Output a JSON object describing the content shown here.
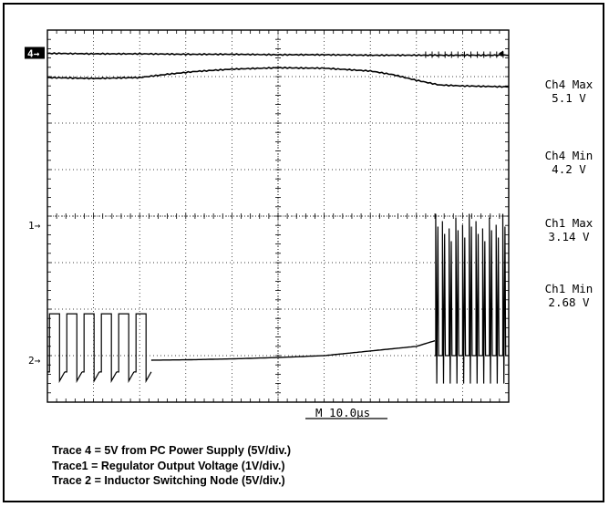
{
  "chart_data": {
    "type": "line",
    "title": "",
    "xlabel": "",
    "ylabel": "",
    "timebase_label": "M 10.0µs",
    "divisions": {
      "x": 10,
      "y": 8
    },
    "xlim_div": [
      0,
      10
    ],
    "ylim_div": [
      -4,
      4
    ],
    "grid": true,
    "channel_markers": [
      {
        "label": "4",
        "level_div": 3.5,
        "style": "boxed"
      },
      {
        "label": "1",
        "level_div": -0.2,
        "style": "arrow"
      },
      {
        "label": "2",
        "level_div": -3.1,
        "style": "arrow"
      }
    ],
    "measurements": [
      {
        "name": "Ch4 Max",
        "value": "5.1 V"
      },
      {
        "name": "Ch4 Min",
        "value": "4.2 V"
      },
      {
        "name": "Ch1 Max",
        "value": "3.14 V"
      },
      {
        "name": "Ch1 Min",
        "value": "2.68 V"
      }
    ],
    "series": [
      {
        "channel": "4",
        "x": [
          0,
          1,
          2,
          3,
          4,
          5,
          6,
          7,
          8,
          9,
          10
        ],
        "y": [
          3.5,
          3.49,
          3.49,
          3.48,
          3.48,
          3.47,
          3.47,
          3.46,
          3.46,
          3.46,
          3.46
        ],
        "ripple_from_div": 8.2
      },
      {
        "channel": "1",
        "x": [
          0,
          1,
          2,
          2.6,
          3.2,
          4,
          5,
          6,
          7,
          7.5,
          8.0,
          8.5,
          9,
          10
        ],
        "y": [
          2.98,
          2.96,
          2.98,
          3.05,
          3.11,
          3.16,
          3.19,
          3.18,
          3.12,
          3.04,
          2.92,
          2.82,
          2.8,
          2.78
        ]
      },
      {
        "channel": "2",
        "x": [
          0,
          2,
          3,
          4,
          5,
          6,
          7,
          8,
          8.4,
          10
        ],
        "y": [
          -3.1,
          -3.1,
          -3.09,
          -3.07,
          -3.04,
          -3.0,
          -2.9,
          -2.8,
          -2.68,
          -2.68
        ],
        "bursts": [
          {
            "from_div": 0,
            "to_div": 2.25,
            "high_div": -2.1,
            "low_div": -3.35,
            "pulses": 6
          },
          {
            "from_div": 8.4,
            "to_div": 10,
            "high_div": 0.05,
            "low_div": -3.0,
            "pulses": 11
          }
        ]
      }
    ]
  },
  "legend": [
    "Trace 4 = 5V from PC Power Supply (5V/div.)",
    "Trace1 = Regulator Output Voltage (1V/div.)",
    "Trace 2 = Inductor Switching Node (5V/div.)"
  ],
  "colors": {
    "trace": "#000000",
    "grid": "#000000",
    "background": "#ffffff"
  }
}
